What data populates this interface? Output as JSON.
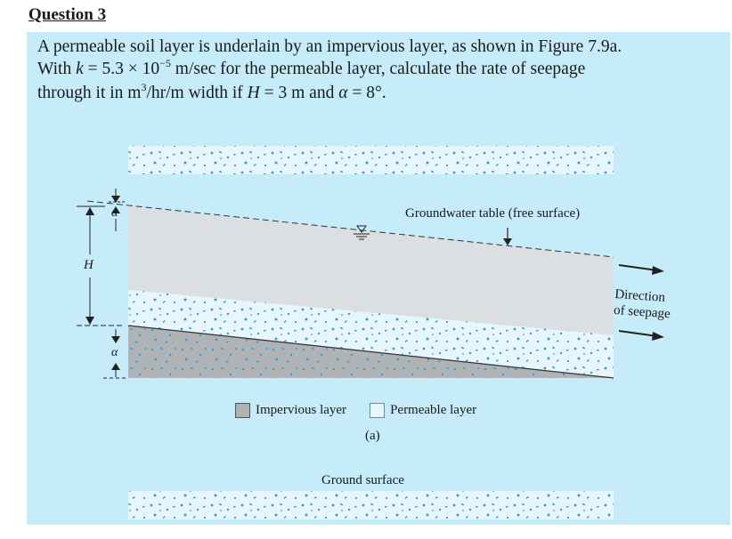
{
  "question": {
    "heading": "Question 3",
    "line1": "A permeable soil layer is underlain by an impervious layer, as shown in Figure 7.9a.",
    "line2_pre": "With ",
    "line2_k": "k",
    "line2_eq": " = 5.3 × 10",
    "line2_exp": "−5",
    "line2_post": " m/sec for the permeable layer, calculate the rate of seepage",
    "line3_pre": "through it in m",
    "line3_exp": "3",
    "line3_mid": "/hr/m width if ",
    "line3_H": "H",
    "line3_eq": " = 3 m and ",
    "line3_alpha": "α",
    "line3_end": " = 8°."
  },
  "figure": {
    "groundwater_label": "Groundwater table (free surface)",
    "direction_label_1": "Direction",
    "direction_label_2": "of seepage",
    "H_symbol": "H",
    "alpha_symbol": "α",
    "legend_impervious": "Impervious layer",
    "legend_permeable": "Permeable layer",
    "caption": "(a)",
    "ground_surface": "Ground surface",
    "colors": {
      "panel": "#c6ecfa",
      "water": "#dcdfe2",
      "impervious": "#b0b3b6",
      "dots": "#3a9bd0"
    }
  }
}
